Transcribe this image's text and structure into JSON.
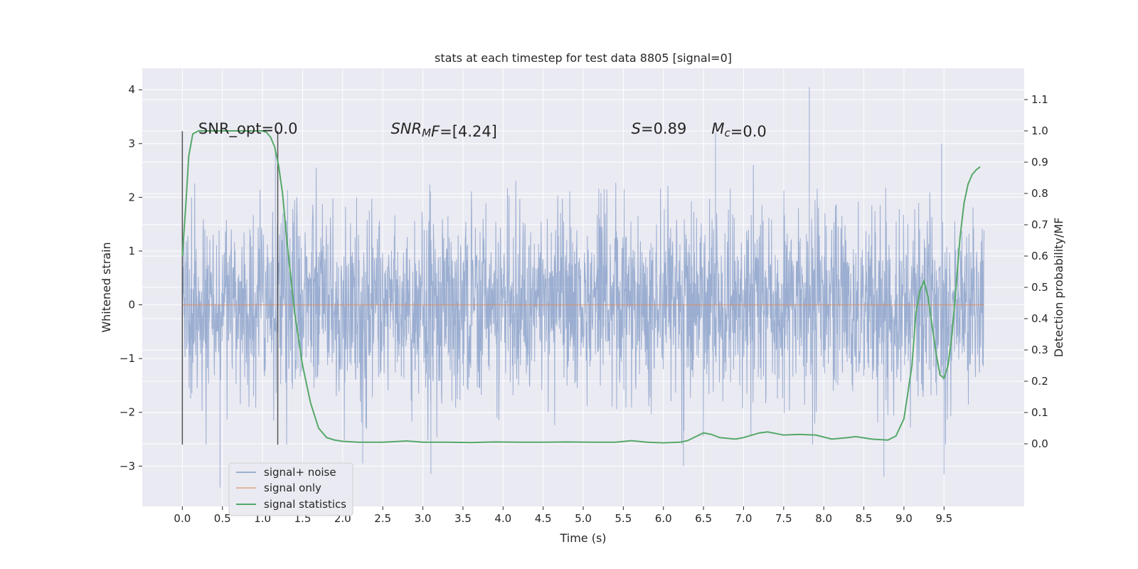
{
  "chart_data": {
    "type": "line",
    "title": "stats at each timestep for test data 8805 [signal=0]",
    "xlabel": "Time (s)",
    "ylabel_left": "Whitened strain",
    "ylabel_right": "Detection probability/MF",
    "xlim": [
      -0.5,
      10.5
    ],
    "ylim_left": [
      -3.75,
      4.4
    ],
    "ylim_right": [
      -0.2,
      1.2
    ],
    "x_ticks": [
      0.0,
      0.5,
      1.0,
      1.5,
      2.0,
      2.5,
      3.0,
      3.5,
      4.0,
      4.5,
      5.0,
      5.5,
      6.0,
      6.5,
      7.0,
      7.5,
      8.0,
      8.5,
      9.0,
      9.5
    ],
    "x_tick_labels": [
      "0.0",
      "0.5",
      "1.0",
      "1.5",
      "2.0",
      "2.5",
      "3.0",
      "3.5",
      "4.0",
      "4.5",
      "5.0",
      "5.5",
      "6.0",
      "6.5",
      "7.0",
      "7.5",
      "8.0",
      "8.5",
      "9.0",
      "9.5"
    ],
    "y_left_ticks": [
      -3,
      -2,
      -1,
      0,
      1,
      2,
      3,
      4
    ],
    "y_left_tick_labels": [
      "−3",
      "−2",
      "−1",
      "0",
      "1",
      "2",
      "3",
      "4"
    ],
    "y_right_ticks": [
      0.0,
      0.1,
      0.2,
      0.3,
      0.4,
      0.5,
      0.6,
      0.7,
      0.8,
      0.9,
      1.0,
      1.1
    ],
    "y_right_tick_labels": [
      "0.0",
      "0.1",
      "0.2",
      "0.3",
      "0.4",
      "0.5",
      "0.6",
      "0.7",
      "0.8",
      "0.9",
      "1.0",
      "1.1"
    ],
    "grid": true,
    "legend_position": "lower-left",
    "series": [
      {
        "name": "signal+ noise",
        "axis": "left",
        "color": "#4c72b0",
        "kind": "noise",
        "x_range": [
          0.0,
          10.0
        ],
        "typical_amplitude": 1.5,
        "min": -3.4,
        "max": 4.05
      },
      {
        "name": "signal only",
        "axis": "left",
        "color": "#dd8452",
        "x": [
          0.0,
          10.0
        ],
        "y": [
          0.0,
          0.0
        ]
      },
      {
        "name": "signal statistics",
        "axis": "right",
        "color": "#55a868",
        "x": [
          0.0,
          0.04,
          0.08,
          0.13,
          0.2,
          0.3,
          0.5,
          0.7,
          0.9,
          1.0,
          1.05,
          1.1,
          1.15,
          1.2,
          1.25,
          1.3,
          1.4,
          1.5,
          1.6,
          1.7,
          1.8,
          1.9,
          2.0,
          2.2,
          2.5,
          2.8,
          3.0,
          3.3,
          3.6,
          3.9,
          4.2,
          4.5,
          4.8,
          5.1,
          5.4,
          5.6,
          5.8,
          6.0,
          6.2,
          6.3,
          6.5,
          6.6,
          6.7,
          6.9,
          7.0,
          7.2,
          7.3,
          7.5,
          7.7,
          7.9,
          8.1,
          8.3,
          8.4,
          8.6,
          8.8,
          8.9,
          9.0,
          9.1,
          9.15,
          9.2,
          9.25,
          9.3,
          9.35,
          9.4,
          9.45,
          9.5,
          9.55,
          9.6,
          9.65,
          9.7,
          9.75,
          9.8,
          9.85,
          9.9,
          9.95
        ],
        "y": [
          0.6,
          0.75,
          0.92,
          0.99,
          1.0,
          1.0,
          1.0,
          1.0,
          1.0,
          1.0,
          0.995,
          0.98,
          0.95,
          0.89,
          0.8,
          0.66,
          0.42,
          0.25,
          0.13,
          0.05,
          0.02,
          0.012,
          0.008,
          0.005,
          0.005,
          0.009,
          0.005,
          0.005,
          0.004,
          0.006,
          0.005,
          0.005,
          0.006,
          0.005,
          0.005,
          0.01,
          0.005,
          0.003,
          0.005,
          0.01,
          0.035,
          0.03,
          0.02,
          0.015,
          0.02,
          0.035,
          0.038,
          0.028,
          0.03,
          0.028,
          0.015,
          0.02,
          0.023,
          0.015,
          0.012,
          0.025,
          0.08,
          0.25,
          0.42,
          0.49,
          0.52,
          0.47,
          0.38,
          0.29,
          0.22,
          0.21,
          0.25,
          0.35,
          0.5,
          0.66,
          0.77,
          0.83,
          0.86,
          0.875,
          0.885
        ]
      }
    ],
    "vertical_markers": [
      {
        "x": 0.0,
        "y_from": -2.6,
        "y_to": 3.23,
        "color": "#555555"
      },
      {
        "x": 1.19,
        "y_from": -2.6,
        "y_to": 3.23,
        "color": "#555555"
      }
    ],
    "annotations": [
      {
        "id": "snr-opt",
        "x": 0.2,
        "y": 3.25,
        "text": "SNR_opt=0.0"
      },
      {
        "id": "snr-mf",
        "x": 2.6,
        "y": 3.25,
        "text_parts": [
          {
            "t": "SNR",
            "italic": true
          },
          {
            "t": "M",
            "italic": true,
            "sub": true
          },
          {
            "t": "F",
            "italic": true
          },
          {
            "t": "=[4.24]"
          }
        ]
      },
      {
        "id": "s-value",
        "x": 5.6,
        "y": 3.25,
        "text_parts": [
          {
            "t": "S",
            "italic": true
          },
          {
            "t": "=0.89"
          }
        ]
      },
      {
        "id": "mc-value",
        "x": 6.6,
        "y": 3.25,
        "text_parts": [
          {
            "t": "M",
            "italic": true
          },
          {
            "t": "c",
            "italic": true,
            "sub": true
          },
          {
            "t": "=0.0"
          }
        ]
      }
    ],
    "notable_spikes": [
      {
        "x": 0.47,
        "y": -3.4
      },
      {
        "x": 1.16,
        "y": 2.9
      },
      {
        "x": 2.25,
        "y": -2.95
      },
      {
        "x": 3.1,
        "y": -3.15
      },
      {
        "x": 6.25,
        "y": -3.0
      },
      {
        "x": 6.65,
        "y": 3.2
      },
      {
        "x": 7.82,
        "y": 4.05
      },
      {
        "x": 8.75,
        "y": -3.2
      },
      {
        "x": 9.5,
        "y": -3.15
      },
      {
        "x": 9.47,
        "y": 3.0
      }
    ]
  }
}
